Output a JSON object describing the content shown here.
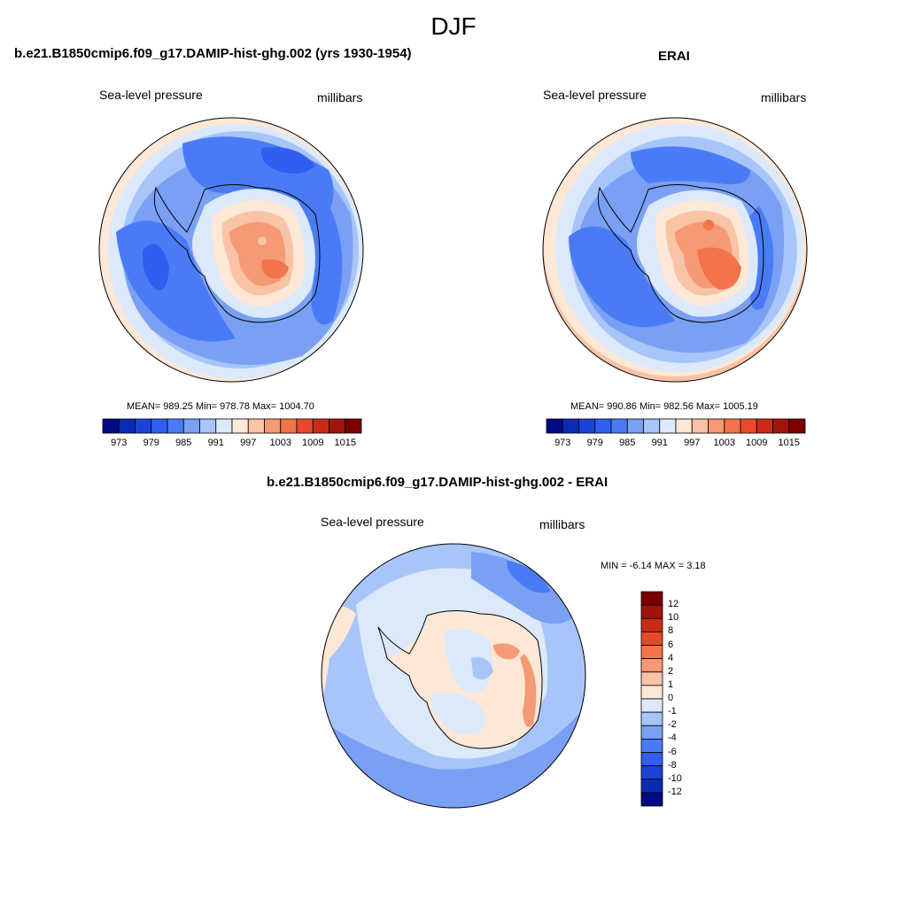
{
  "figure": {
    "title": "DJF"
  },
  "panels": [
    {
      "title": "b.e21.B1850cmip6.f09_g17.DAMIP-hist-ghg.002 (yrs 1930-1954)",
      "variable": "Sea-level pressure",
      "units": "millibars",
      "stats": "MEAN= 989.25  Min= 978.78  Max= 1004.70"
    },
    {
      "title": "ERAI",
      "variable": "Sea-level pressure",
      "units": "millibars",
      "stats": "MEAN= 990.86  Min= 982.56  Max= 1005.19"
    },
    {
      "title": "b.e21.B1850cmip6.f09_g17.DAMIP-hist-ghg.002 - ERAI",
      "variable": "Sea-level pressure",
      "units": "millibars",
      "stats": "MIN =  -6.14 MAX =   3.18"
    }
  ],
  "colorbars": {
    "field": {
      "colors": [
        "#000b83",
        "#0b2bb5",
        "#1c43d5",
        "#2f5ef0",
        "#4a7bf7",
        "#7aa0f4",
        "#a8c5fa",
        "#dbe9fb",
        "#fde7d6",
        "#f9c3a6",
        "#f59a74",
        "#f3744b",
        "#e8492b",
        "#cb2a16",
        "#a0140c",
        "#7a0000"
      ],
      "tick_labels": [
        "973",
        "979",
        "985",
        "991",
        "997",
        "1003",
        "1009",
        "1015"
      ],
      "tick_values": [
        973,
        979,
        985,
        991,
        997,
        1003,
        1009,
        1015
      ],
      "boundaries": [
        970,
        973,
        976,
        979,
        982,
        985,
        988,
        991,
        994,
        997,
        1000,
        1003,
        1006,
        1009,
        1012,
        1015
      ]
    },
    "diff": {
      "colors": [
        "#7a0000",
        "#a0140c",
        "#cb2a16",
        "#e8492b",
        "#f3744b",
        "#f59a74",
        "#f9c3a6",
        "#fde7d6",
        "#dbe9fb",
        "#a8c5fa",
        "#7aa0f4",
        "#4a7bf7",
        "#2f5ef0",
        "#1c43d5",
        "#0b2bb5",
        "#000b83"
      ],
      "tick_labels": [
        "12",
        "10",
        "8",
        "6",
        "4",
        "2",
        "1",
        "0",
        "-1",
        "-2",
        "-4",
        "-6",
        "-8",
        "-10",
        "-12"
      ]
    }
  },
  "chart_data": [
    {
      "type": "heatmap",
      "title": "b.e21.B1850cmip6.f09_g17.DAMIP-hist-ghg.002 (yrs 1930-1954)",
      "variable": "Sea-level pressure",
      "units": "millibars",
      "projection": "south polar stereographic",
      "season": "DJF",
      "mean": 989.25,
      "min": 978.78,
      "max": 1004.7,
      "contour_levels": [
        973,
        976,
        979,
        982,
        985,
        988,
        991,
        994,
        997,
        1000,
        1003,
        1006,
        1009,
        1012,
        1015
      ]
    },
    {
      "type": "heatmap",
      "title": "ERAI",
      "variable": "Sea-level pressure",
      "units": "millibars",
      "projection": "south polar stereographic",
      "season": "DJF",
      "mean": 990.86,
      "min": 982.56,
      "max": 1005.19,
      "contour_levels": [
        973,
        976,
        979,
        982,
        985,
        988,
        991,
        994,
        997,
        1000,
        1003,
        1006,
        1009,
        1012,
        1015
      ]
    },
    {
      "type": "heatmap",
      "title": "b.e21.B1850cmip6.f09_g17.DAMIP-hist-ghg.002 - ERAI",
      "variable": "Sea-level pressure",
      "units": "millibars",
      "projection": "south polar stereographic",
      "season": "DJF",
      "min": -6.14,
      "max": 3.18,
      "contour_levels": [
        -12,
        -10,
        -8,
        -6,
        -4,
        -2,
        -1,
        0,
        1,
        2,
        4,
        6,
        8,
        10,
        12
      ]
    }
  ]
}
